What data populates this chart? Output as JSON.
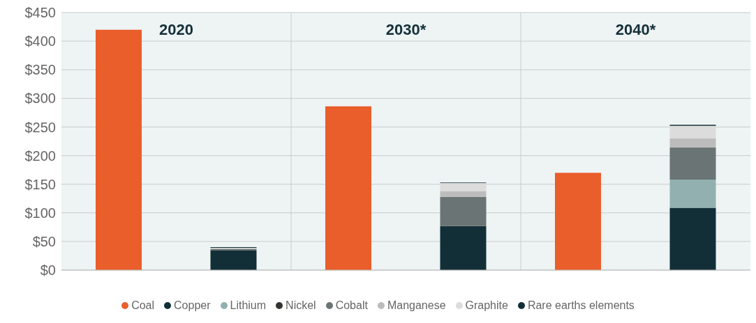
{
  "chart_data": {
    "type": "bar",
    "stacked": true,
    "categories": [
      null,
      null,
      null,
      null,
      null,
      null
    ],
    "annotations": [
      "2020",
      "2030*",
      "2040*"
    ],
    "series": [
      {
        "name": "Coal",
        "color": "#e95e2b",
        "values": [
          420,
          null,
          286,
          null,
          170,
          null
        ]
      },
      {
        "name": "Copper",
        "color": "#122f38",
        "values": [
          null,
          34,
          null,
          77,
          null,
          109
        ]
      },
      {
        "name": "Lithium",
        "color": "#93b0b0",
        "values": [
          null,
          0,
          null,
          0,
          null,
          49
        ]
      },
      {
        "name": "Nickel",
        "color": "#333330",
        "values": [
          null,
          0,
          null,
          0,
          null,
          0
        ]
      },
      {
        "name": "Cobalt",
        "color": "#6a7474",
        "values": [
          null,
          3,
          null,
          51,
          null,
          56
        ]
      },
      {
        "name": "Manganese",
        "color": "#bcbcbc",
        "values": [
          null,
          1,
          null,
          10,
          null,
          16
        ]
      },
      {
        "name": "Graphite",
        "color": "#dcdcdc",
        "values": [
          null,
          1,
          null,
          14,
          null,
          22
        ]
      },
      {
        "name": "Rare earths elements",
        "color": "#122f38",
        "values": [
          null,
          1,
          null,
          1,
          null,
          2
        ]
      }
    ],
    "ylim": [
      0,
      450
    ],
    "yticks": [
      {
        "value": 0,
        "label": "$0"
      },
      {
        "value": 50,
        "label": "$50"
      },
      {
        "value": 100,
        "label": "$100"
      },
      {
        "value": 150,
        "label": "$150"
      },
      {
        "value": 200,
        "label": "$200"
      },
      {
        "value": 250,
        "label": "$250"
      },
      {
        "value": 300,
        "label": "$300"
      },
      {
        "value": 350,
        "label": "$350"
      },
      {
        "value": 400,
        "label": "$400"
      },
      {
        "value": 450,
        "label": "$450"
      }
    ],
    "grid": true,
    "legend": "bottom"
  }
}
